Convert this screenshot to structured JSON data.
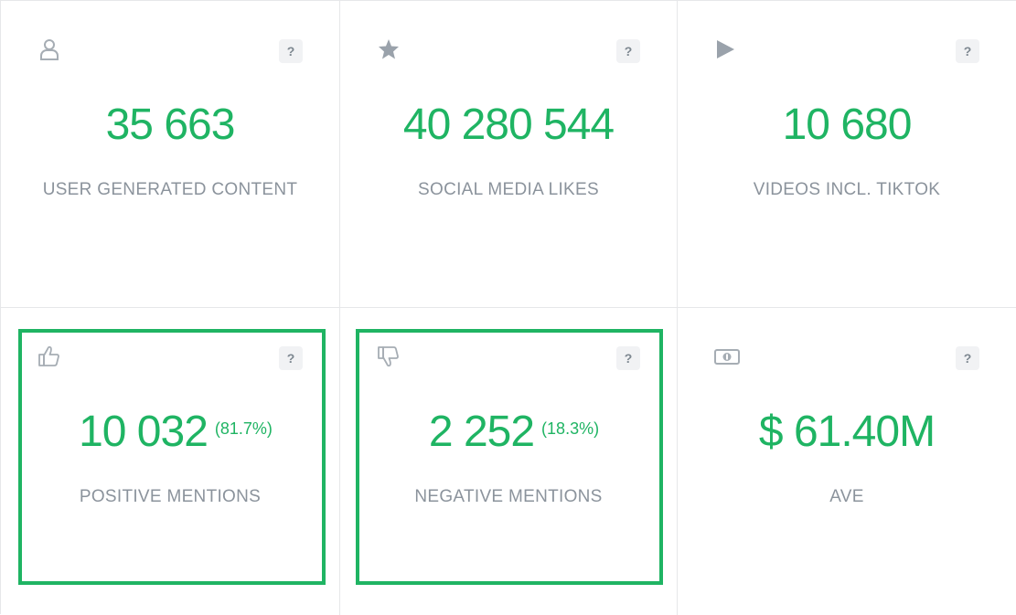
{
  "help_label": "?",
  "accent_color": "#1fb463",
  "cards": [
    {
      "icon": "user-icon",
      "value": "35 663",
      "label": "USER GENERATED CONTENT"
    },
    {
      "icon": "star-icon",
      "value": "40 280 544",
      "label": "SOCIAL MEDIA LIKES"
    },
    {
      "icon": "play-icon",
      "value": "10 680",
      "label": "VIDEOS INCL. TIKTOK"
    },
    {
      "icon": "thumbs-up-icon",
      "value": "10 032",
      "percent": "(81.7%)",
      "label": "POSITIVE MENTIONS",
      "highlighted": true
    },
    {
      "icon": "thumbs-down-icon",
      "value": "2 252",
      "percent": "(18.3%)",
      "label": "NEGATIVE MENTIONS",
      "highlighted": true
    },
    {
      "icon": "money-icon",
      "value": "$ 61.40M",
      "label": "AVE"
    }
  ]
}
